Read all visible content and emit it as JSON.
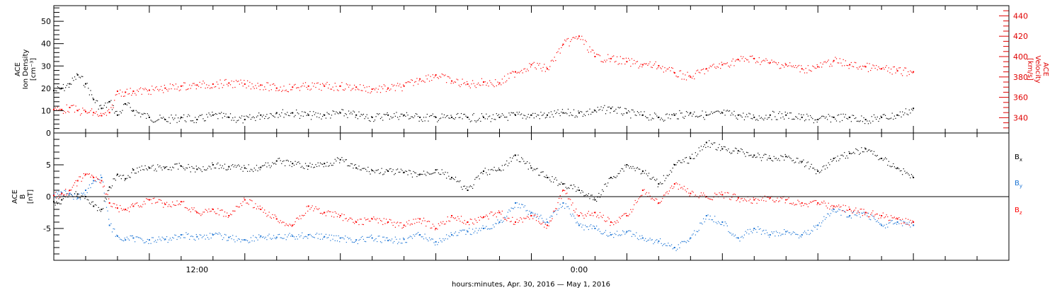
{
  "chart_data": [
    {
      "type": "scatter",
      "panel": "top",
      "ylabel_left_lines": [
        "ACE",
        "Ion Density",
        "[cm⁻³]"
      ],
      "ylabel_right_lines": [
        "ACE",
        "Velocity",
        "[km/s]"
      ],
      "ylim_left": [
        0,
        57
      ],
      "ylim_right": [
        325,
        450
      ],
      "y_ticks_left": [
        "0",
        "10",
        "20",
        "30",
        "40",
        "50"
      ],
      "y_ticks_right": [
        "340",
        "360",
        "380",
        "400",
        "420",
        "440"
      ],
      "series": [
        {
          "axis": "left",
          "color": "#000000",
          "x": [
            0.0,
            0.5,
            1.0,
            1.5,
            2.0,
            2.5,
            3.0,
            3.5,
            4.0,
            4.5,
            5.0,
            6.0,
            7.0,
            8.0,
            9.0,
            10.0,
            11.0,
            12.0,
            13.0,
            14.0,
            15.0,
            16.0,
            17.0,
            18.0,
            19.0,
            20.0,
            21.0,
            22.0,
            23.0,
            24.0,
            25.0,
            26.0,
            27.0,
            28.0,
            29.0,
            30.0,
            31.0,
            32.0,
            33.0,
            34.0,
            35.0,
            36.0,
            37.0,
            38.0,
            39.0,
            40.0,
            41.0,
            42.0,
            43.0,
            44.0,
            45.0,
            46.0,
            47.0,
            48.0,
            49.0,
            50.0,
            51.0,
            52.0,
            53.0,
            54.0
          ],
          "values": [
            19,
            20,
            22,
            26,
            22,
            15,
            11,
            14,
            8,
            13,
            10,
            7,
            6,
            7,
            6,
            8,
            7,
            6,
            8,
            9,
            9,
            8,
            8,
            9,
            8,
            7,
            8,
            8,
            7,
            7,
            7,
            7,
            7,
            7,
            8,
            8,
            8,
            9,
            9,
            10,
            11,
            9,
            8,
            7,
            8,
            9,
            8,
            9,
            8,
            7,
            8,
            8,
            7,
            6,
            7,
            7,
            6,
            7,
            8,
            11
          ]
        },
        {
          "axis": "right",
          "color": "#ff0000",
          "x": [
            0.0,
            0.5,
            1.0,
            1.5,
            2.0,
            2.5,
            3.0,
            3.5,
            4.0,
            4.5,
            5.0,
            6.0,
            7.0,
            8.0,
            9.0,
            10.0,
            11.0,
            12.0,
            13.0,
            14.0,
            15.0,
            16.0,
            17.0,
            18.0,
            19.0,
            20.0,
            21.0,
            22.0,
            23.0,
            24.0,
            25.0,
            26.0,
            27.0,
            28.0,
            29.0,
            30.0,
            31.0,
            32.0,
            33.0,
            34.0,
            35.0,
            36.0,
            37.0,
            38.0,
            39.0,
            40.0,
            41.0,
            42.0,
            43.0,
            44.0,
            45.0,
            46.0,
            47.0,
            48.0,
            49.0,
            50.0,
            51.0,
            52.0,
            53.0,
            54.0
          ],
          "values": [
            348,
            348,
            350,
            347,
            346,
            345,
            342,
            345,
            366,
            365,
            366,
            367,
            369,
            371,
            372,
            373,
            374,
            373,
            372,
            369,
            370,
            371,
            371,
            371,
            370,
            368,
            369,
            371,
            378,
            382,
            376,
            373,
            375,
            374,
            385,
            392,
            388,
            412,
            420,
            400,
            398,
            395,
            392,
            391,
            384,
            380,
            388,
            392,
            397,
            398,
            394,
            392,
            388,
            390,
            396,
            392,
            390,
            388,
            386,
            385
          ]
        }
      ]
    },
    {
      "type": "scatter",
      "panel": "bottom",
      "ylabel_lines": [
        "ACE",
        "B",
        "[nT]"
      ],
      "ylim": [
        -10,
        10
      ],
      "y_ticks": [
        "-5",
        "0",
        "5"
      ],
      "zero_line": true,
      "series": [
        {
          "name": "Bx",
          "legend_base": "B",
          "legend_sub": "x",
          "color": "#000000",
          "x": [
            0.0,
            0.5,
            1.0,
            1.5,
            2.0,
            2.5,
            3.0,
            3.5,
            4.0,
            4.5,
            5.0,
            6.0,
            7.0,
            8.0,
            9.0,
            10.0,
            11.0,
            12.0,
            13.0,
            14.0,
            15.0,
            16.0,
            17.0,
            18.0,
            19.0,
            20.0,
            21.0,
            22.0,
            23.0,
            24.0,
            25.0,
            26.0,
            27.0,
            28.0,
            29.0,
            30.0,
            31.0,
            32.0,
            33.0,
            34.0,
            35.0,
            36.0,
            37.0,
            38.0,
            39.0,
            40.0,
            41.0,
            42.0,
            43.0,
            44.0,
            45.0,
            46.0,
            47.0,
            48.0,
            49.0,
            50.0,
            51.0,
            52.0,
            53.0,
            54.0
          ],
          "values": [
            -0.8,
            -0.5,
            0.5,
            0.4,
            0.0,
            -1.5,
            -2.0,
            1.5,
            3.5,
            2.8,
            4.2,
            4.5,
            4.6,
            4.8,
            4.3,
            5.0,
            4.7,
            4.5,
            4.6,
            5.6,
            5.2,
            4.8,
            5.2,
            5.8,
            4.5,
            4.1,
            4.0,
            3.8,
            3.5,
            4.2,
            3.0,
            1.0,
            4.0,
            4.2,
            6.5,
            4.5,
            3.0,
            2.0,
            1.0,
            -0.5,
            3.0,
            5.0,
            4.0,
            2.0,
            5.0,
            6.0,
            8.5,
            7.5,
            7.2,
            6.5,
            6.0,
            6.3,
            5.5,
            4.0,
            6.0,
            6.8,
            7.5,
            6.0,
            4.5,
            3.0
          ]
        },
        {
          "name": "By",
          "legend_base": "B",
          "legend_sub": "y",
          "color": "#1a73d4",
          "x": [
            0.0,
            0.5,
            1.0,
            1.5,
            2.0,
            2.5,
            3.0,
            3.5,
            4.0,
            4.5,
            5.0,
            6.0,
            7.0,
            8.0,
            9.0,
            10.0,
            11.0,
            12.0,
            13.0,
            14.0,
            15.0,
            16.0,
            17.0,
            18.0,
            19.0,
            20.0,
            21.0,
            22.0,
            23.0,
            24.0,
            25.0,
            26.0,
            27.0,
            28.0,
            29.0,
            30.0,
            31.0,
            32.0,
            33.0,
            34.0,
            35.0,
            36.0,
            37.0,
            38.0,
            39.0,
            40.0,
            41.0,
            42.0,
            43.0,
            44.0,
            45.0,
            46.0,
            47.0,
            48.0,
            49.0,
            50.0,
            51.0,
            52.0,
            53.0,
            54.0
          ],
          "values": [
            0.3,
            0.6,
            0.5,
            -0.2,
            1.0,
            2.5,
            3.0,
            -4.5,
            -6.2,
            -6.8,
            -6.5,
            -6.8,
            -6.7,
            -6.0,
            -6.3,
            -6.0,
            -6.4,
            -6.8,
            -6.2,
            -6.4,
            -6.2,
            -6.0,
            -6.3,
            -6.5,
            -6.8,
            -6.5,
            -6.9,
            -6.7,
            -6.0,
            -7.1,
            -6.0,
            -5.5,
            -5.0,
            -4.0,
            -1.0,
            -2.5,
            -4.0,
            -1.0,
            -4.5,
            -5.0,
            -6.0,
            -5.5,
            -6.5,
            -7.0,
            -8.0,
            -6.5,
            -3.0,
            -4.0,
            -6.5,
            -5.0,
            -6.0,
            -5.5,
            -6.0,
            -4.5,
            -2.0,
            -3.0,
            -2.5,
            -4.5,
            -4.0,
            -4.5
          ]
        },
        {
          "name": "Bz",
          "legend_base": "B",
          "legend_sub": "z",
          "color": "#ff0000",
          "x": [
            0.0,
            0.5,
            1.0,
            1.5,
            2.0,
            2.5,
            3.0,
            3.5,
            4.0,
            4.5,
            5.0,
            6.0,
            7.0,
            8.0,
            9.0,
            10.0,
            11.0,
            12.0,
            13.0,
            14.0,
            15.0,
            16.0,
            17.0,
            18.0,
            19.0,
            20.0,
            21.0,
            22.0,
            23.0,
            24.0,
            25.0,
            26.0,
            27.0,
            28.0,
            29.0,
            30.0,
            31.0,
            32.0,
            33.0,
            34.0,
            35.0,
            36.0,
            37.0,
            38.0,
            39.0,
            40.0,
            41.0,
            42.0,
            43.0,
            44.0,
            45.0,
            46.0,
            47.0,
            48.0,
            49.0,
            50.0,
            51.0,
            52.0,
            53.0,
            54.0
          ],
          "values": [
            0.2,
            0.5,
            1.0,
            2.5,
            3.5,
            3.0,
            2.5,
            -1.0,
            -1.8,
            -2.0,
            -1.5,
            -0.5,
            -1.2,
            -0.8,
            -2.5,
            -2.0,
            -3.0,
            -0.5,
            -2.0,
            -3.5,
            -4.5,
            -1.5,
            -2.5,
            -3.0,
            -4.0,
            -3.5,
            -4.0,
            -4.5,
            -3.5,
            -5.0,
            -3.0,
            -4.0,
            -3.2,
            -2.5,
            -4.0,
            -3.0,
            -4.5,
            1.0,
            -3.0,
            -2.5,
            -4.0,
            -3.0,
            1.0,
            -1.0,
            2.0,
            0.5,
            0.0,
            0.3,
            -0.2,
            -0.5,
            -0.2,
            -0.5,
            -1.0,
            -1.0,
            -1.5,
            -2.0,
            -2.5,
            -3.0,
            -3.5,
            -4.0
          ]
        }
      ]
    }
  ],
  "x_axis": {
    "ticks": [
      {
        "x": 9.0,
        "label": "12:00"
      },
      {
        "x": 33.0,
        "label": "0:00"
      }
    ],
    "xlabel": "hours:minutes, Apr. 30, 2016 — May  1, 2016",
    "xlim": [
      0,
      60
    ]
  },
  "colors": {
    "density": "#000000",
    "velocity": "#ff0000",
    "bx": "#000000",
    "by": "#1a73d4",
    "bz": "#ff0000",
    "frame": "#000000"
  }
}
